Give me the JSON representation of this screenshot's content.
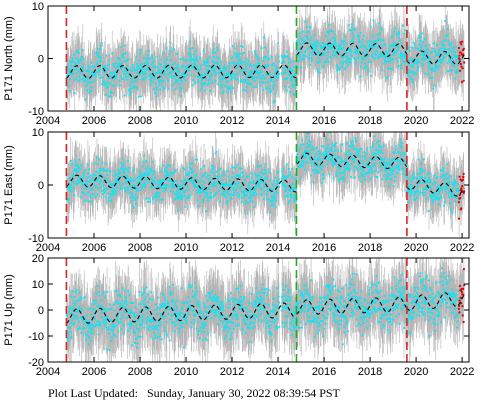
{
  "footer": "Plot Last Updated:   Sunday, January 30, 2022 08:39:54 PST",
  "colors": {
    "obs": "#19e1f0",
    "err": "#b4b4b4",
    "model": "#000000",
    "recent": "#e00000",
    "event_red": "#dd2222",
    "event_green": "#22aa22"
  },
  "chart_data": [
    {
      "type": "scatter",
      "ylabel": "P171 North (mm)",
      "xlim": [
        2004,
        2022.3
      ],
      "ylim": [
        -10,
        10
      ],
      "xticks": [
        2004,
        2006,
        2008,
        2010,
        2012,
        2014,
        2016,
        2018,
        2020,
        2022
      ],
      "yticks": [
        -10,
        0,
        10
      ],
      "events": [
        {
          "year": 2004.8,
          "color": "red"
        },
        {
          "year": 2014.8,
          "color": "green"
        },
        {
          "year": 2019.6,
          "color": "red"
        }
      ],
      "model": {
        "pre": {
          "start": 2004.8,
          "end": 2014.8,
          "offset": -2.6,
          "slope": 0.02,
          "amplitude": 1.2
        },
        "mid": {
          "start": 2014.8,
          "end": 2019.6,
          "offset": 1.8,
          "slope": -0.05,
          "amplitude": 1.2
        },
        "post": {
          "start": 2019.6,
          "end": 2022.1,
          "offset": 0.3,
          "slope": -0.1,
          "amplitude": 1.2
        }
      },
      "scatter_sd": 1.9
    },
    {
      "type": "scatter",
      "ylabel": "P171 East (mm)",
      "xlim": [
        2004,
        2022.3
      ],
      "ylim": [
        -10,
        10
      ],
      "xticks": [
        2004,
        2006,
        2008,
        2010,
        2012,
        2014,
        2016,
        2018,
        2020,
        2022
      ],
      "yticks": [
        -10,
        0,
        10
      ],
      "events": [
        {
          "year": 2004.8,
          "color": "red"
        },
        {
          "year": 2014.8,
          "color": "green"
        },
        {
          "year": 2019.6,
          "color": "red"
        }
      ],
      "model": {
        "pre": {
          "start": 2004.8,
          "end": 2014.8,
          "offset": 0.8,
          "slope": -0.1,
          "amplitude": 1.1
        },
        "mid": {
          "start": 2014.8,
          "end": 2019.6,
          "offset": 5.0,
          "slope": -0.2,
          "amplitude": 1.1
        },
        "post": {
          "start": 2019.6,
          "end": 2022.1,
          "offset": 0.3,
          "slope": -0.6,
          "amplitude": 1.1
        }
      },
      "scatter_sd": 1.8
    },
    {
      "type": "scatter",
      "ylabel": "P171 Up (mm)",
      "xlim": [
        2004,
        2022.3
      ],
      "ylim": [
        -20,
        20
      ],
      "xticks": [
        2004,
        2006,
        2008,
        2010,
        2012,
        2014,
        2016,
        2018,
        2020,
        2022
      ],
      "yticks": [
        -20,
        -10,
        0,
        10,
        20
      ],
      "events": [
        {
          "year": 2004.8,
          "color": "red"
        },
        {
          "year": 2014.8,
          "color": "green"
        },
        {
          "year": 2019.6,
          "color": "red"
        }
      ],
      "model": {
        "pre": {
          "start": 2004.8,
          "end": 2014.8,
          "offset": -2.5,
          "slope": 0.25,
          "amplitude": 2.8
        },
        "mid": {
          "start": 2014.8,
          "end": 2019.6,
          "offset": 1.0,
          "slope": 0.25,
          "amplitude": 2.8
        },
        "post": {
          "start": 2019.6,
          "end": 2022.1,
          "offset": 2.5,
          "slope": 0.8,
          "amplitude": 2.8
        }
      },
      "scatter_sd": 4.5
    }
  ]
}
